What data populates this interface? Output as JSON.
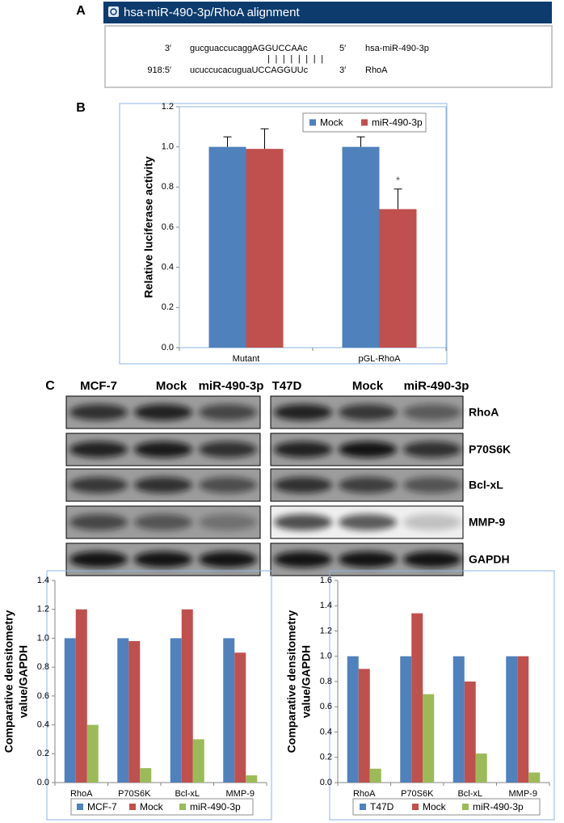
{
  "panel_labels": [
    "A",
    "B",
    "C"
  ],
  "alignment": {
    "title": "hsa-miR-490-3p/RhoA alignment",
    "rows": [
      {
        "prefix": "3′",
        "sequence": "gucguaccucaggAGGUCCAAc",
        "end": "5′",
        "name": "hsa-miR-490-3p"
      },
      {
        "prefix": "918:5′",
        "sequence": "ucuccucacuguaUCCAGGUUc",
        "end": "3′",
        "name": "RhoA"
      }
    ],
    "pairing": "||||||||"
  },
  "blots": {
    "left_lanes": [
      "MCF-7",
      "Mock",
      "miR-490-3p"
    ],
    "right_lanes": [
      "T47D",
      "Mock",
      "miR-490-3p"
    ],
    "rows": [
      "RhoA",
      "P70S6K",
      "Bcl-xL",
      "MMP-9",
      "GAPDH"
    ]
  },
  "chart_data": [
    {
      "type": "bar",
      "ylabel": "Relative luciferase activity",
      "categories": [
        "Mutant",
        "pGL-RhoA"
      ],
      "series": [
        {
          "name": "Mock",
          "color": "#4f81bd",
          "values": [
            1.0,
            1.0
          ],
          "errors": [
            0.05,
            0.05
          ]
        },
        {
          "name": "miR-490-3p",
          "color": "#c0504d",
          "values": [
            0.99,
            0.69
          ],
          "errors": [
            0.1,
            0.1
          ]
        }
      ],
      "ylim": [
        0,
        1.2
      ],
      "yticks": [
        {
          "value": 0,
          "label": "0.0"
        },
        0.2,
        0.4,
        0.6,
        0.8,
        {
          "value": 1,
          "label": "1.0"
        },
        1.2
      ],
      "annotation": "*",
      "legend": "upper right",
      "grid": false
    },
    {
      "type": "bar",
      "ylabel": [
        "Comparative densitometry",
        "value/GAPDH"
      ],
      "categories": [
        "RhoA",
        "P70S6K",
        "Bcl-xL",
        "MMP-9"
      ],
      "series": [
        {
          "name": "MCF-7",
          "color": "#4f81bd",
          "values": [
            1.0,
            1.0,
            1.0,
            1.0
          ]
        },
        {
          "name": "Mock",
          "color": "#c0504d",
          "values": [
            1.2,
            0.98,
            1.2,
            0.9
          ]
        },
        {
          "name": "miR-490-3p",
          "color": "#9bbb59",
          "values": [
            0.4,
            0.1,
            0.3,
            0.05
          ]
        }
      ],
      "ylim": [
        0,
        1.4
      ],
      "yticks": [
        {
          "value": 0,
          "label": "0.0"
        },
        0.2,
        0.4,
        0.6,
        0.8,
        {
          "value": 1,
          "label": "1.0"
        },
        1.2,
        1.4
      ],
      "legend": "bottom",
      "grid": false
    },
    {
      "type": "bar",
      "ylabel": [
        "Comparative densitometry",
        "value/GAPDH"
      ],
      "categories": [
        "RhoA",
        "P70S6K",
        "Bcl-xL",
        "MMP-9"
      ],
      "series": [
        {
          "name": "T47D",
          "color": "#4f81bd",
          "values": [
            1.0,
            1.0,
            1.0,
            1.0
          ]
        },
        {
          "name": "Mock",
          "color": "#c0504d",
          "values": [
            0.9,
            1.34,
            0.8,
            1.0
          ]
        },
        {
          "name": "miR-490-3p",
          "color": "#9bbb59",
          "values": [
            0.11,
            0.7,
            0.23,
            0.08
          ]
        }
      ],
      "ylim": [
        0,
        1.6
      ],
      "yticks": [
        {
          "value": 0,
          "label": "0.0"
        },
        0.2,
        0.4,
        0.6,
        0.8,
        {
          "value": 1,
          "label": "1.0"
        },
        1.2,
        1.4,
        1.6
      ],
      "legend": "bottom",
      "grid": false
    }
  ]
}
